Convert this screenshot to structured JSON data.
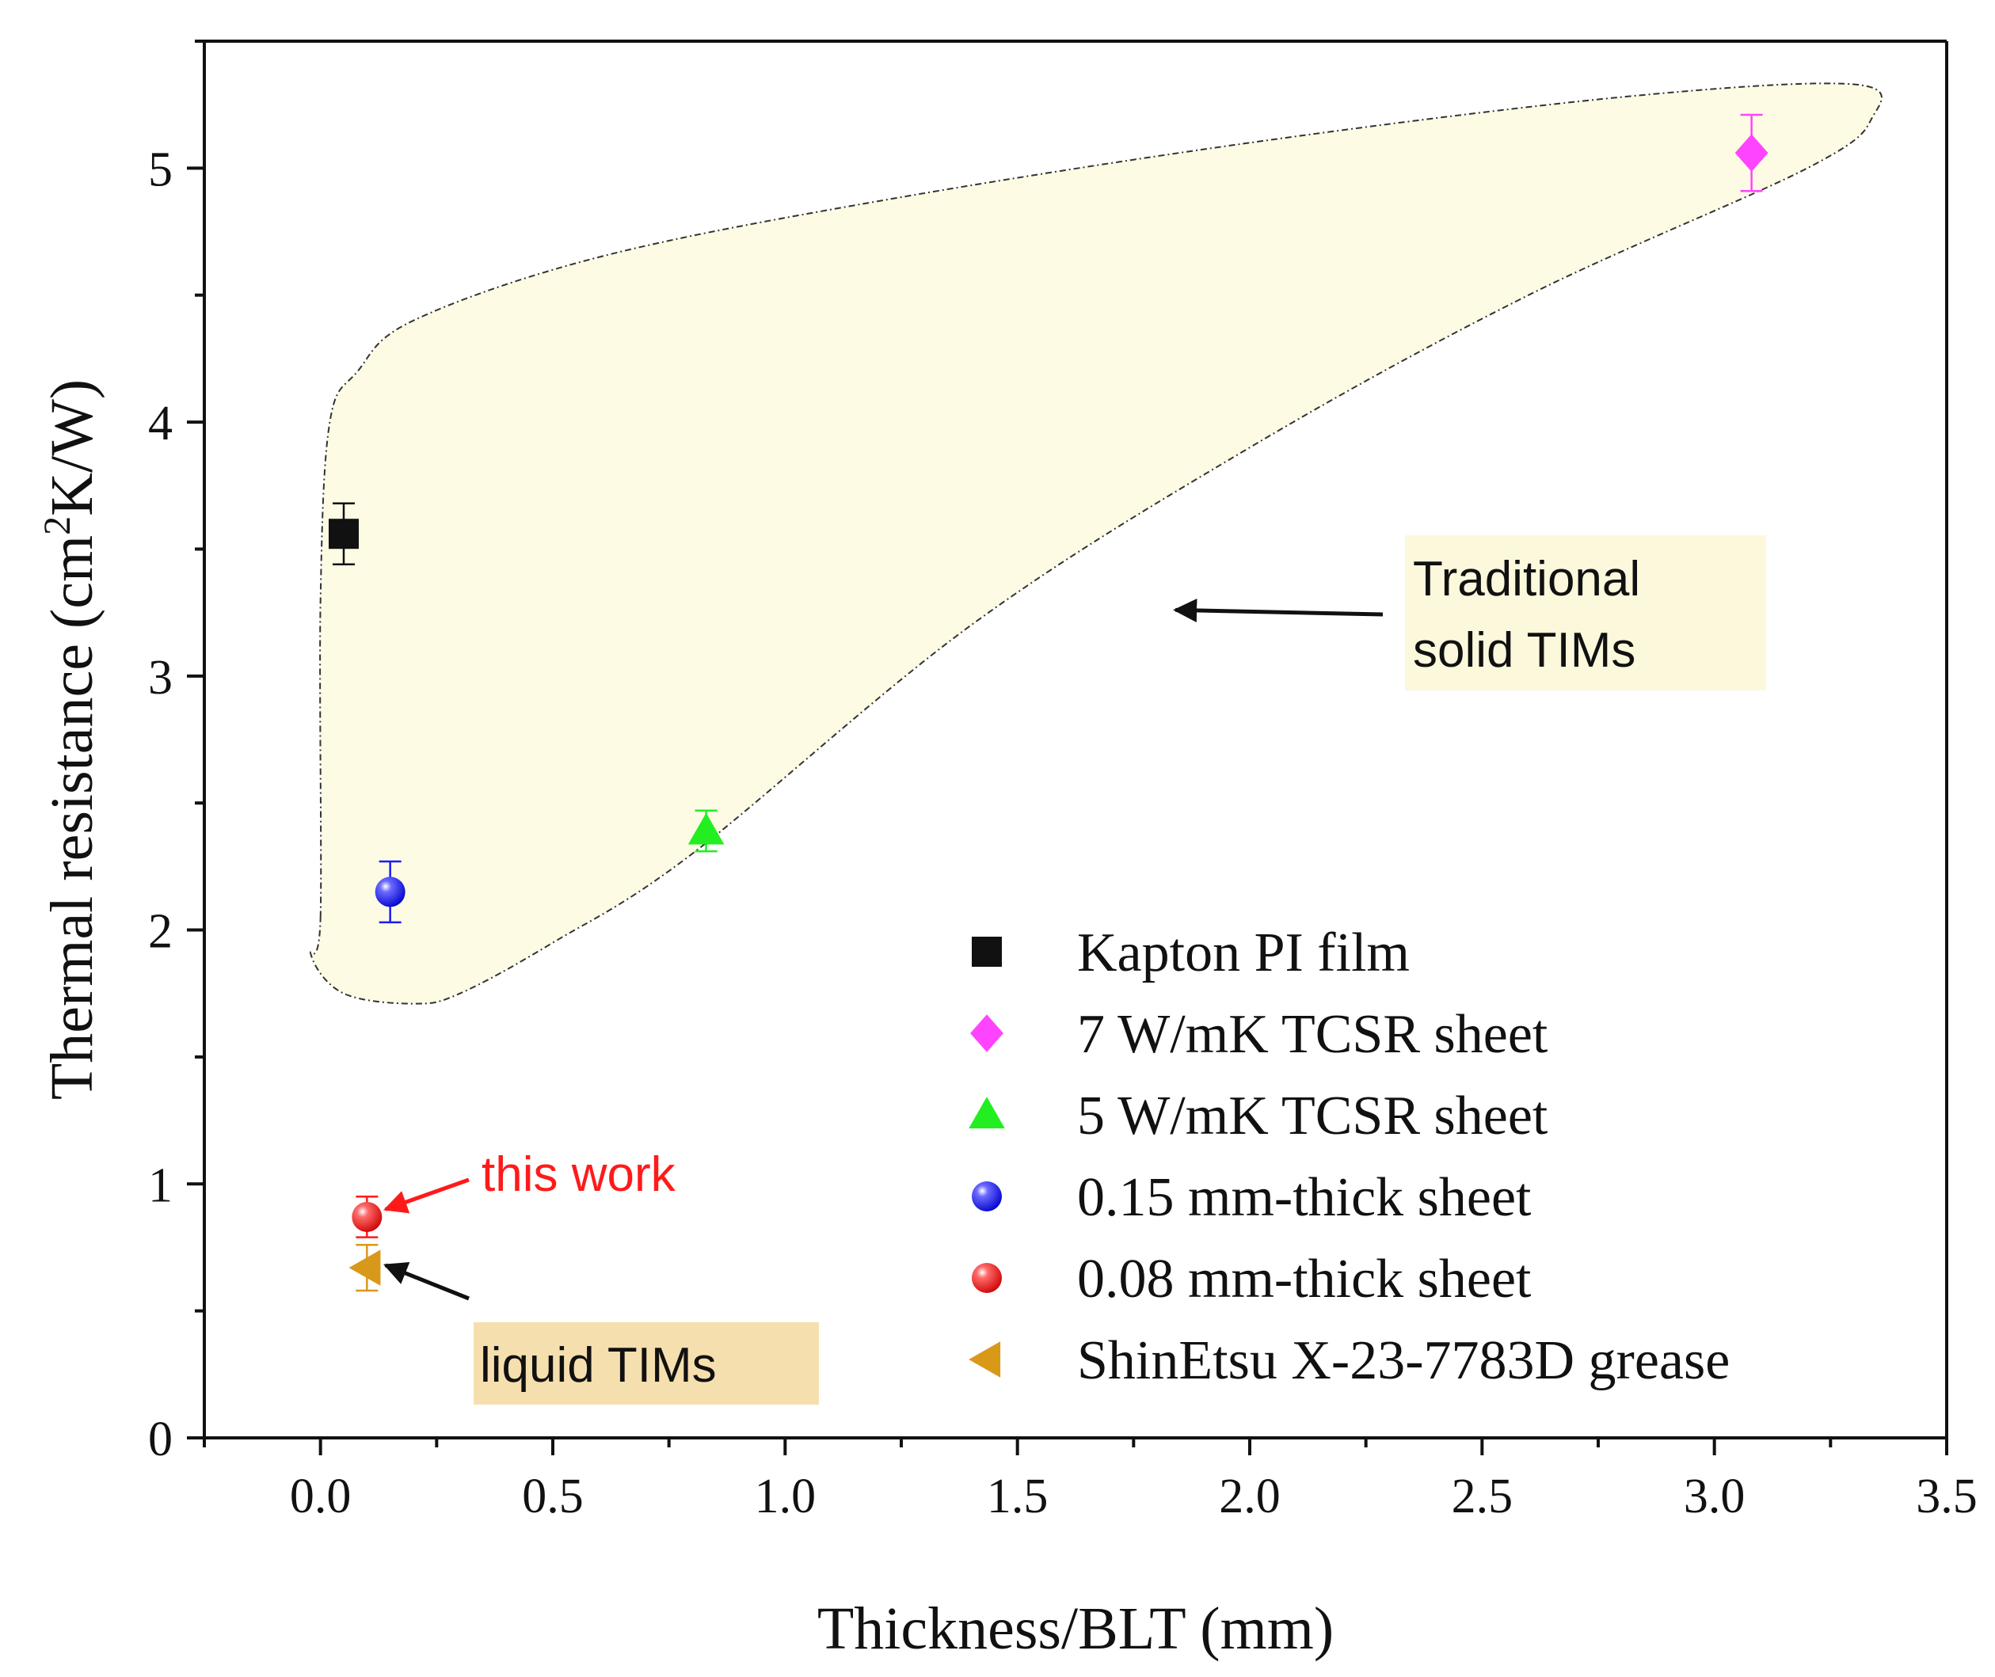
{
  "chart_data": {
    "type": "scatter",
    "xlabel": "Thickness/BLT (mm)",
    "ylabel_main": "Thermal resistance (cm",
    "ylabel_sup": "2",
    "ylabel_tail": "K/W)",
    "xlim": [
      -0.25,
      3.5
    ],
    "ylim": [
      0,
      5.5
    ],
    "xticks": [
      0.0,
      0.5,
      1.0,
      1.5,
      2.0,
      2.5,
      3.0,
      3.5
    ],
    "xtick_labels": [
      "0.0",
      "0.5",
      "1.0",
      "1.5",
      "2.0",
      "2.5",
      "3.0",
      "3.5"
    ],
    "yticks": [
      0,
      1,
      2,
      3,
      4,
      5
    ],
    "ytick_labels": [
      "0",
      "1",
      "2",
      "3",
      "4",
      "5"
    ],
    "series": [
      {
        "name": "Kapton PI film",
        "marker": "square",
        "color": "#111111",
        "x": 0.05,
        "y": 3.56,
        "err": 0.12
      },
      {
        "name": "7 W/mK TCSR sheet",
        "marker": "diamond",
        "color": "#ff44ff",
        "x": 3.08,
        "y": 5.06,
        "err": 0.15
      },
      {
        "name": "5 W/mK TCSR sheet",
        "marker": "triangle-up",
        "color": "#22ee22",
        "x": 0.83,
        "y": 2.39,
        "err": 0.08
      },
      {
        "name": "0.15 mm-thick sheet",
        "marker": "sphere",
        "color": "#1a1aff",
        "x": 0.15,
        "y": 2.15,
        "err": 0.12
      },
      {
        "name": "0.08 mm-thick sheet",
        "marker": "sphere",
        "color": "#ff1a1a",
        "x": 0.1,
        "y": 0.87,
        "err": 0.08
      },
      {
        "name": "ShinEtsu X-23-7783D grease",
        "marker": "triangle-left",
        "color": "#d8981a",
        "x": 0.1,
        "y": 0.67,
        "err": 0.09
      }
    ],
    "region": {
      "name": "Traditional solid TIMs",
      "fill": "#fdfbe3",
      "outline": [
        [
          0.0,
          2.05
        ],
        [
          0.0,
          3.3
        ],
        [
          0.02,
          4.0
        ],
        [
          0.08,
          4.2
        ],
        [
          0.2,
          4.4
        ],
        [
          0.6,
          4.65
        ],
        [
          1.2,
          4.87
        ],
        [
          2.0,
          5.1
        ],
        [
          2.8,
          5.28
        ],
        [
          3.3,
          5.33
        ],
        [
          3.34,
          5.2
        ],
        [
          3.2,
          5.0
        ],
        [
          2.6,
          4.5
        ],
        [
          2.0,
          3.9
        ],
        [
          1.4,
          3.2
        ],
        [
          0.8,
          2.3
        ],
        [
          0.5,
          1.95
        ],
        [
          0.3,
          1.75
        ],
        [
          0.2,
          1.71
        ],
        [
          0.05,
          1.75
        ],
        [
          -0.02,
          1.9
        ]
      ]
    },
    "annotations": [
      {
        "id": "traditional",
        "lines": [
          "Traditional",
          "solid TIMs"
        ],
        "box_color": "#fbf8dc",
        "text_color": "#111111",
        "arrow_to": [
          1.84,
          3.26
        ]
      },
      {
        "id": "this-work",
        "lines": [
          "this work"
        ],
        "box_color": "",
        "text_color": "#ff1a1a",
        "arrow_to": [
          0.14,
          0.9
        ]
      },
      {
        "id": "liquid",
        "lines": [
          "liquid TIMs"
        ],
        "box_color": "#f6dfae",
        "text_color": "#111111",
        "arrow_to": [
          0.14,
          0.68
        ]
      }
    ],
    "legend_placement": "bottom-right"
  },
  "colors": {
    "axis": "#111111",
    "arrow_dark": "#111111",
    "arrow_red": "#ff1a1a"
  }
}
